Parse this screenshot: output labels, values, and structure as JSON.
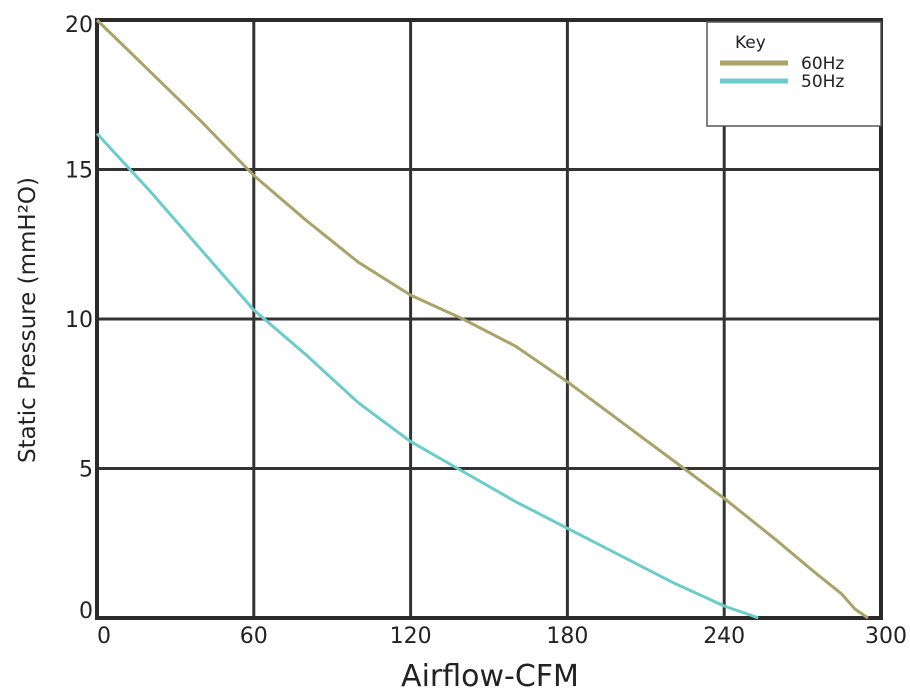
{
  "chart_data": {
    "type": "line",
    "xlabel": "Airflow-CFM",
    "ylabel": "Static Pressure (mmH²O)",
    "xlim": [
      0,
      300
    ],
    "ylim": [
      0,
      20
    ],
    "x_ticks": [
      "0",
      "60",
      "120",
      "180",
      "240",
      "300"
    ],
    "y_ticks": [
      "0",
      "5",
      "10",
      "15",
      "20"
    ],
    "grid": true,
    "legend": {
      "title": "Key",
      "placement": "top-right"
    },
    "series": [
      {
        "name": "60Hz",
        "color": "#a9a36a",
        "x": [
          0,
          20,
          40,
          60,
          80,
          100,
          120,
          140,
          160,
          180,
          200,
          220,
          240,
          260,
          275,
          285,
          290,
          295
        ],
        "y": [
          20,
          18.3,
          16.6,
          14.8,
          13.3,
          11.9,
          10.8,
          10.0,
          9.1,
          7.9,
          6.6,
          5.3,
          4.0,
          2.6,
          1.5,
          0.8,
          0.3,
          0
        ]
      },
      {
        "name": "50Hz",
        "color": "#6ccccc",
        "x": [
          0,
          20,
          40,
          60,
          80,
          100,
          120,
          140,
          160,
          180,
          200,
          220,
          240,
          250,
          253
        ],
        "y": [
          16.2,
          14.3,
          12.3,
          10.3,
          8.8,
          7.2,
          5.9,
          4.9,
          3.9,
          3.0,
          2.1,
          1.2,
          0.4,
          0.1,
          0
        ]
      }
    ]
  }
}
